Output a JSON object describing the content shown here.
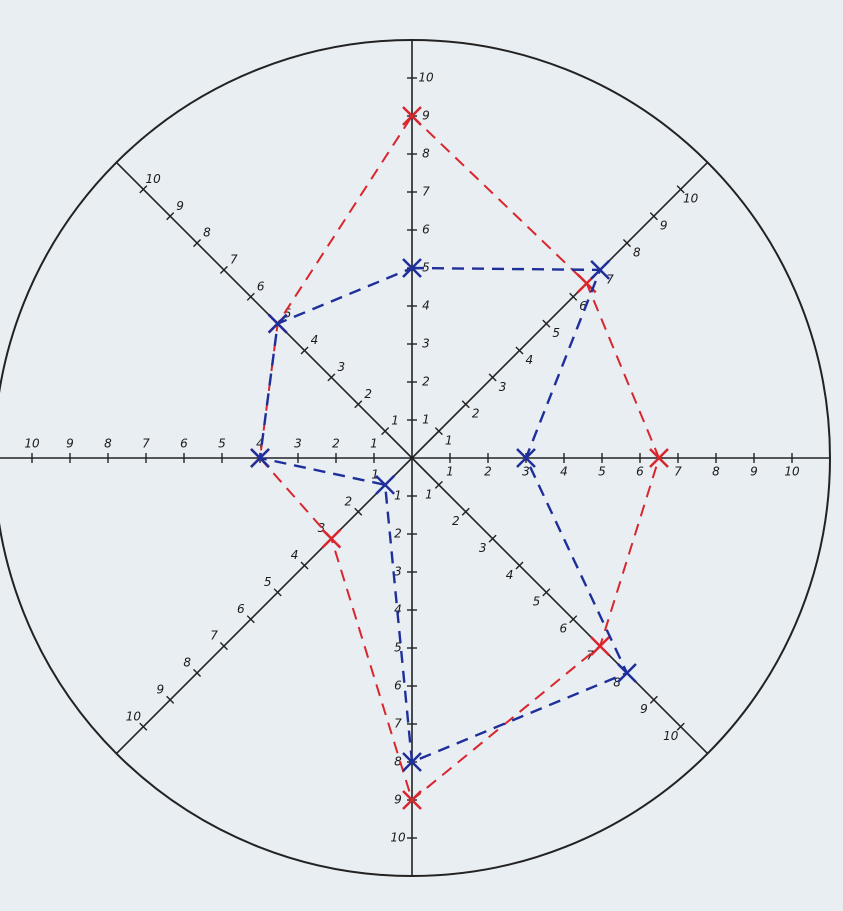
{
  "chart_data": {
    "type": "radar",
    "categories": [
      null,
      null,
      null,
      null,
      null,
      null,
      null,
      null
    ],
    "rlim": [
      0,
      10
    ],
    "rticks": [
      1,
      2,
      3,
      4,
      5,
      6,
      7,
      8,
      9,
      10
    ],
    "series": [
      {
        "color": "#d8262c",
        "values": [
          9,
          6.5,
          6.5,
          7,
          9,
          3,
          4,
          5
        ]
      },
      {
        "color": "#1f2f9a",
        "values": [
          5,
          7,
          3,
          8,
          8,
          1,
          4,
          5
        ]
      }
    ]
  }
}
